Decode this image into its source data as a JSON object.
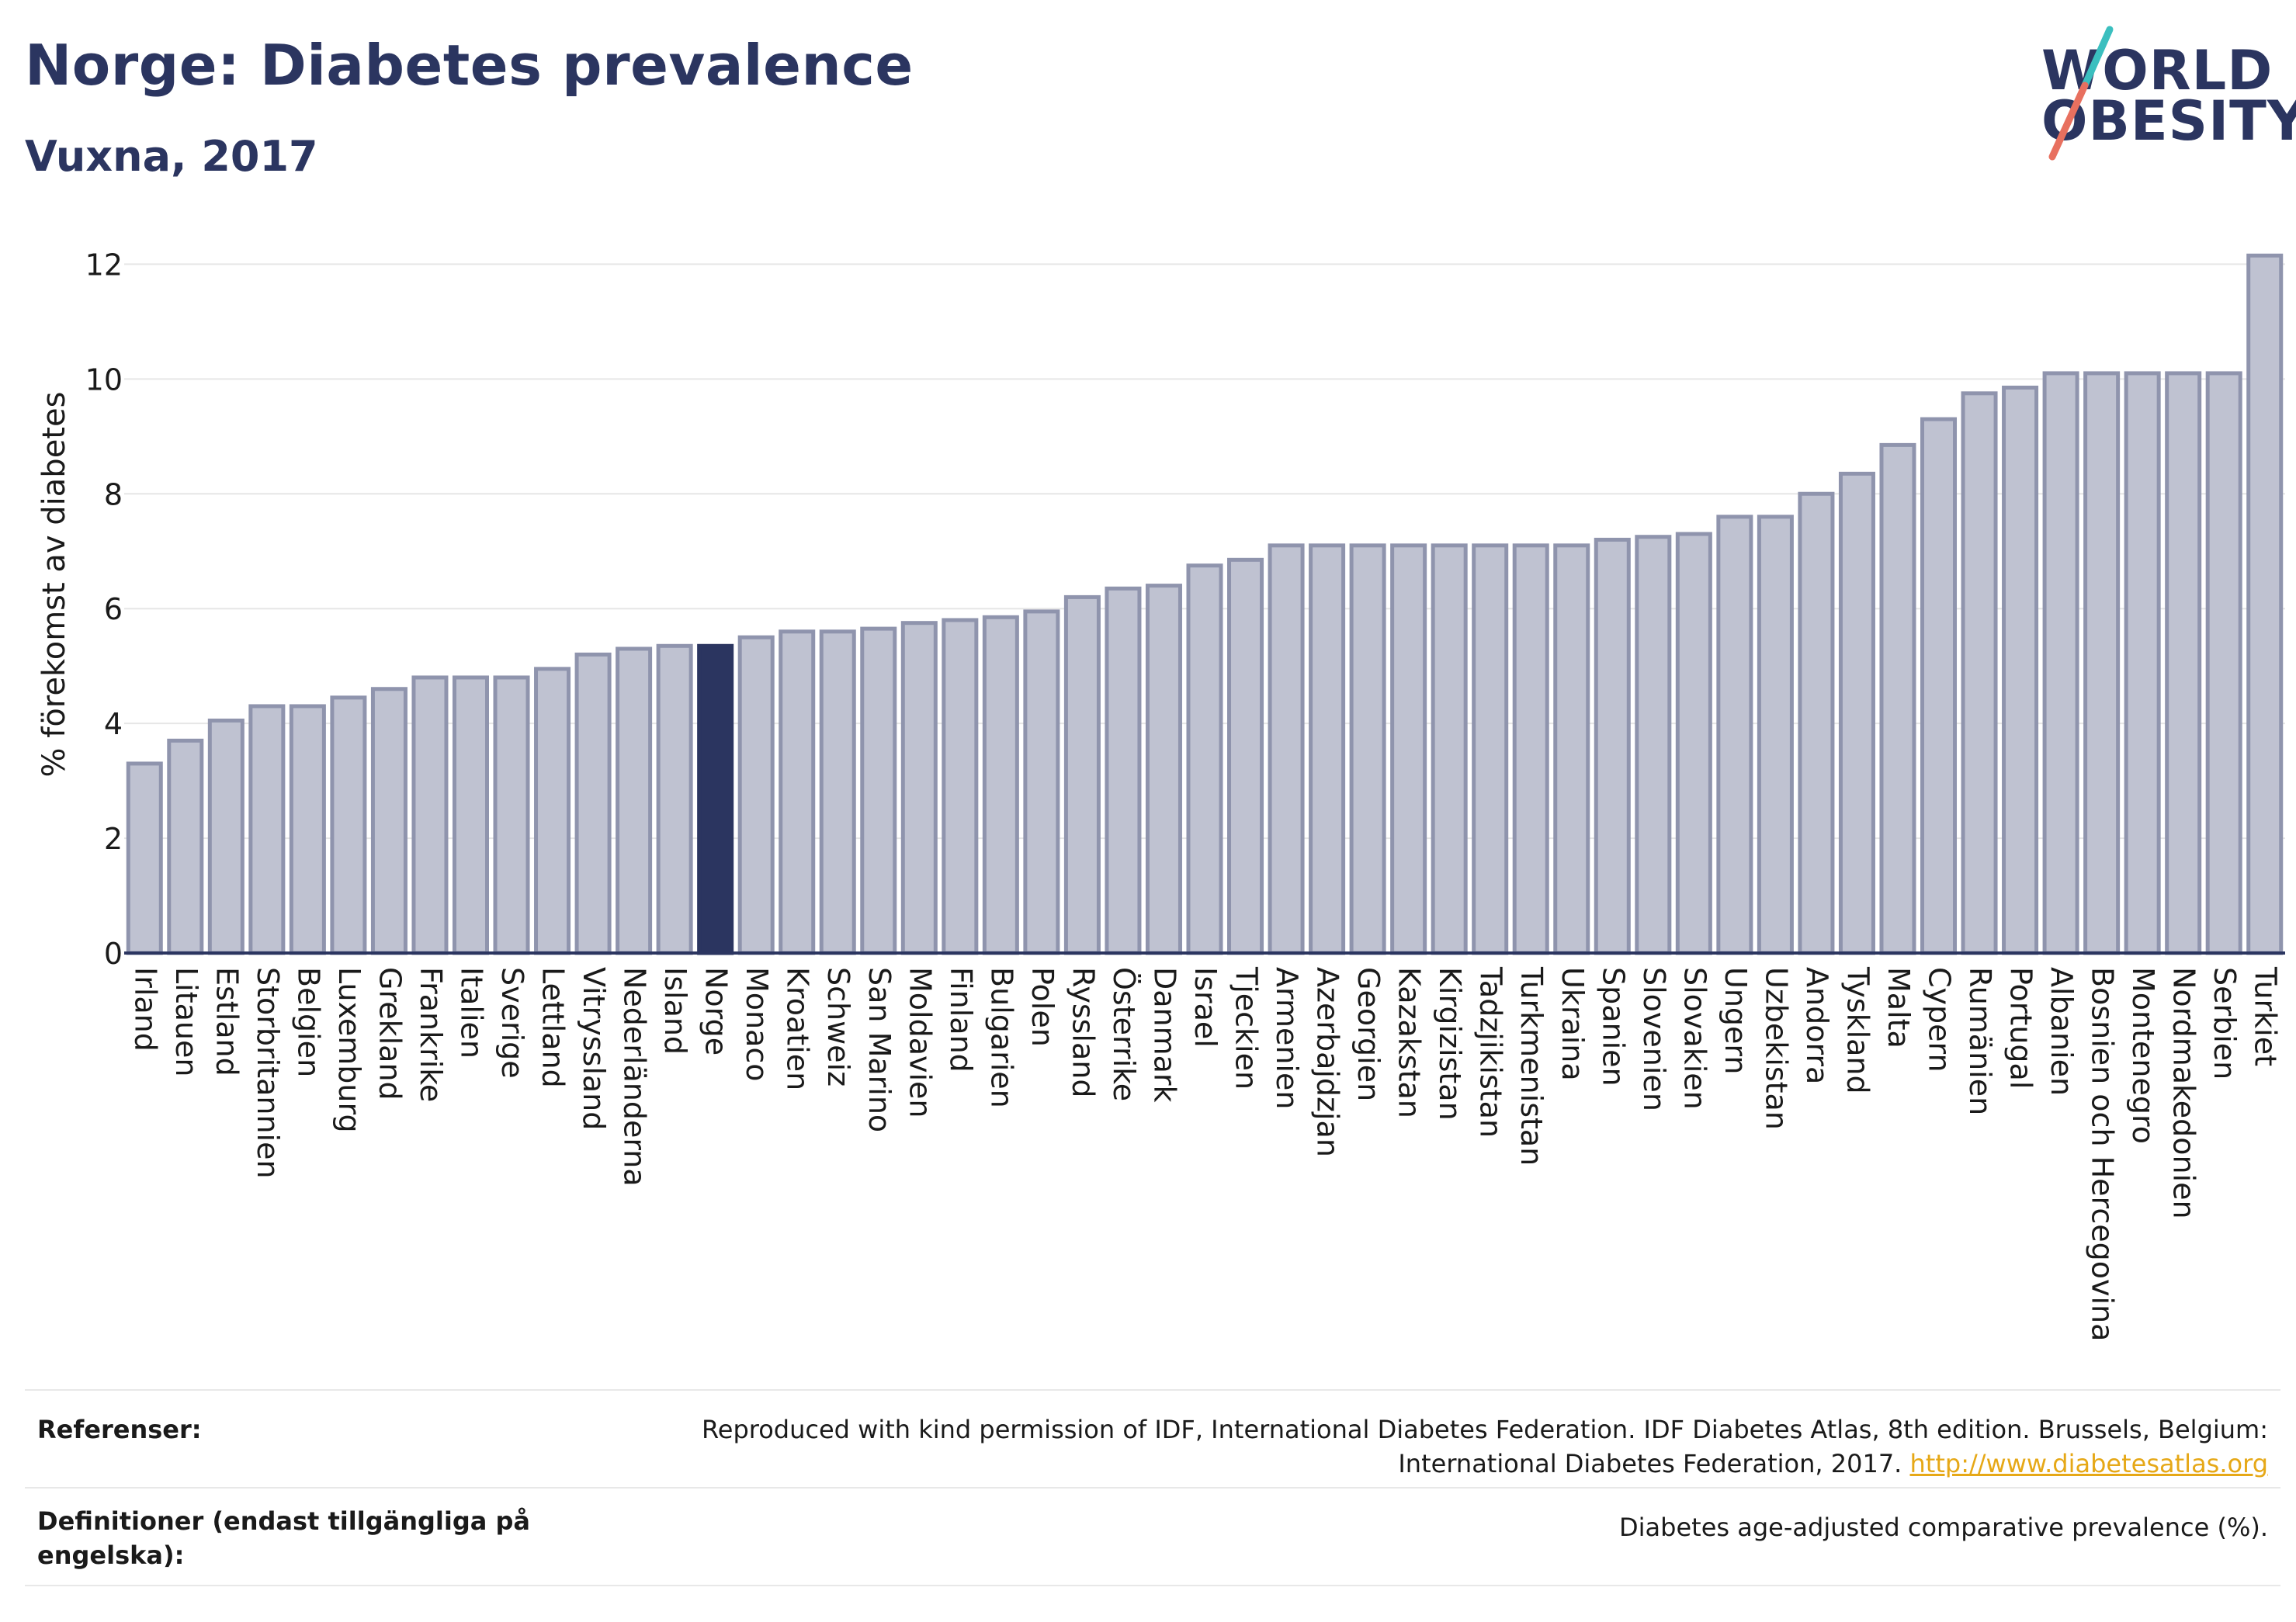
{
  "header": {
    "title": "Norge: Diabetes prevalence",
    "subtitle": "Vuxna, 2017"
  },
  "logo": {
    "line1": "WORLD",
    "line2": "OBESITY",
    "colors": {
      "text": "#2b3560",
      "slash_top": "#3bbfbf",
      "slash_bottom": "#e8705f"
    }
  },
  "chart_data": {
    "type": "bar",
    "title": "",
    "ylabel": "% förekomst av diabetes",
    "xlabel": "",
    "ylim": [
      0,
      12.6
    ],
    "yticks": [
      0,
      2,
      4,
      6,
      8,
      10,
      12
    ],
    "grid": true,
    "highlight": "Norge",
    "colors": {
      "bar": "#bfc2d1",
      "bar_edge": "#8f94ad",
      "highlight": "#2b3560",
      "grid": "#e6e6e6",
      "axis": "#2b3560"
    },
    "categories": [
      "Irland",
      "Litauen",
      "Estland",
      "Storbritannien",
      "Belgien",
      "Luxemburg",
      "Grekland",
      "Frankrike",
      "Italien",
      "Sverige",
      "Lettland",
      "Vitryssland",
      "Nederländerna",
      "Island",
      "Norge",
      "Monaco",
      "Kroatien",
      "Schweiz",
      "San Marino",
      "Moldavien",
      "Finland",
      "Bulgarien",
      "Polen",
      "Ryssland",
      "Österrike",
      "Danmark",
      "Israel",
      "Tjeckien",
      "Armenien",
      "Azerbajdzjan",
      "Georgien",
      "Kazakstan",
      "Kirgizistan",
      "Tadzjikistan",
      "Turkmenistan",
      "Ukraina",
      "Spanien",
      "Slovenien",
      "Slovakien",
      "Ungern",
      "Uzbekistan",
      "Andorra",
      "Tyskland",
      "Malta",
      "Cypern",
      "Rumänien",
      "Portugal",
      "Albanien",
      "Bosnien och Hercegovina",
      "Montenegro",
      "Nordmakedonien",
      "Serbien",
      "Turkiet"
    ],
    "values": [
      3.3,
      3.7,
      4.05,
      4.3,
      4.3,
      4.45,
      4.6,
      4.8,
      4.8,
      4.8,
      4.95,
      5.2,
      5.3,
      5.35,
      5.35,
      5.5,
      5.6,
      5.6,
      5.65,
      5.75,
      5.8,
      5.85,
      5.95,
      6.2,
      6.35,
      6.4,
      6.75,
      6.85,
      7.1,
      7.1,
      7.1,
      7.1,
      7.1,
      7.1,
      7.1,
      7.1,
      7.2,
      7.25,
      7.3,
      7.6,
      7.6,
      8.0,
      8.35,
      8.85,
      9.3,
      9.75,
      9.85,
      10.1,
      10.1,
      10.1,
      10.1,
      10.1,
      12.15
    ]
  },
  "references": [
    {
      "label": "Referenser:",
      "text": "Reproduced with kind permission of IDF, International Diabetes Federation. IDF Diabetes Atlas, 8th edition. Brussels, Belgium: International Diabetes Federation, 2017.",
      "link": "http://www.diabetesatlas.org"
    },
    {
      "label": "Definitioner (endast tillgängliga på engelska):",
      "text": "Diabetes age-adjusted comparative prevalence (%).",
      "link": ""
    }
  ]
}
